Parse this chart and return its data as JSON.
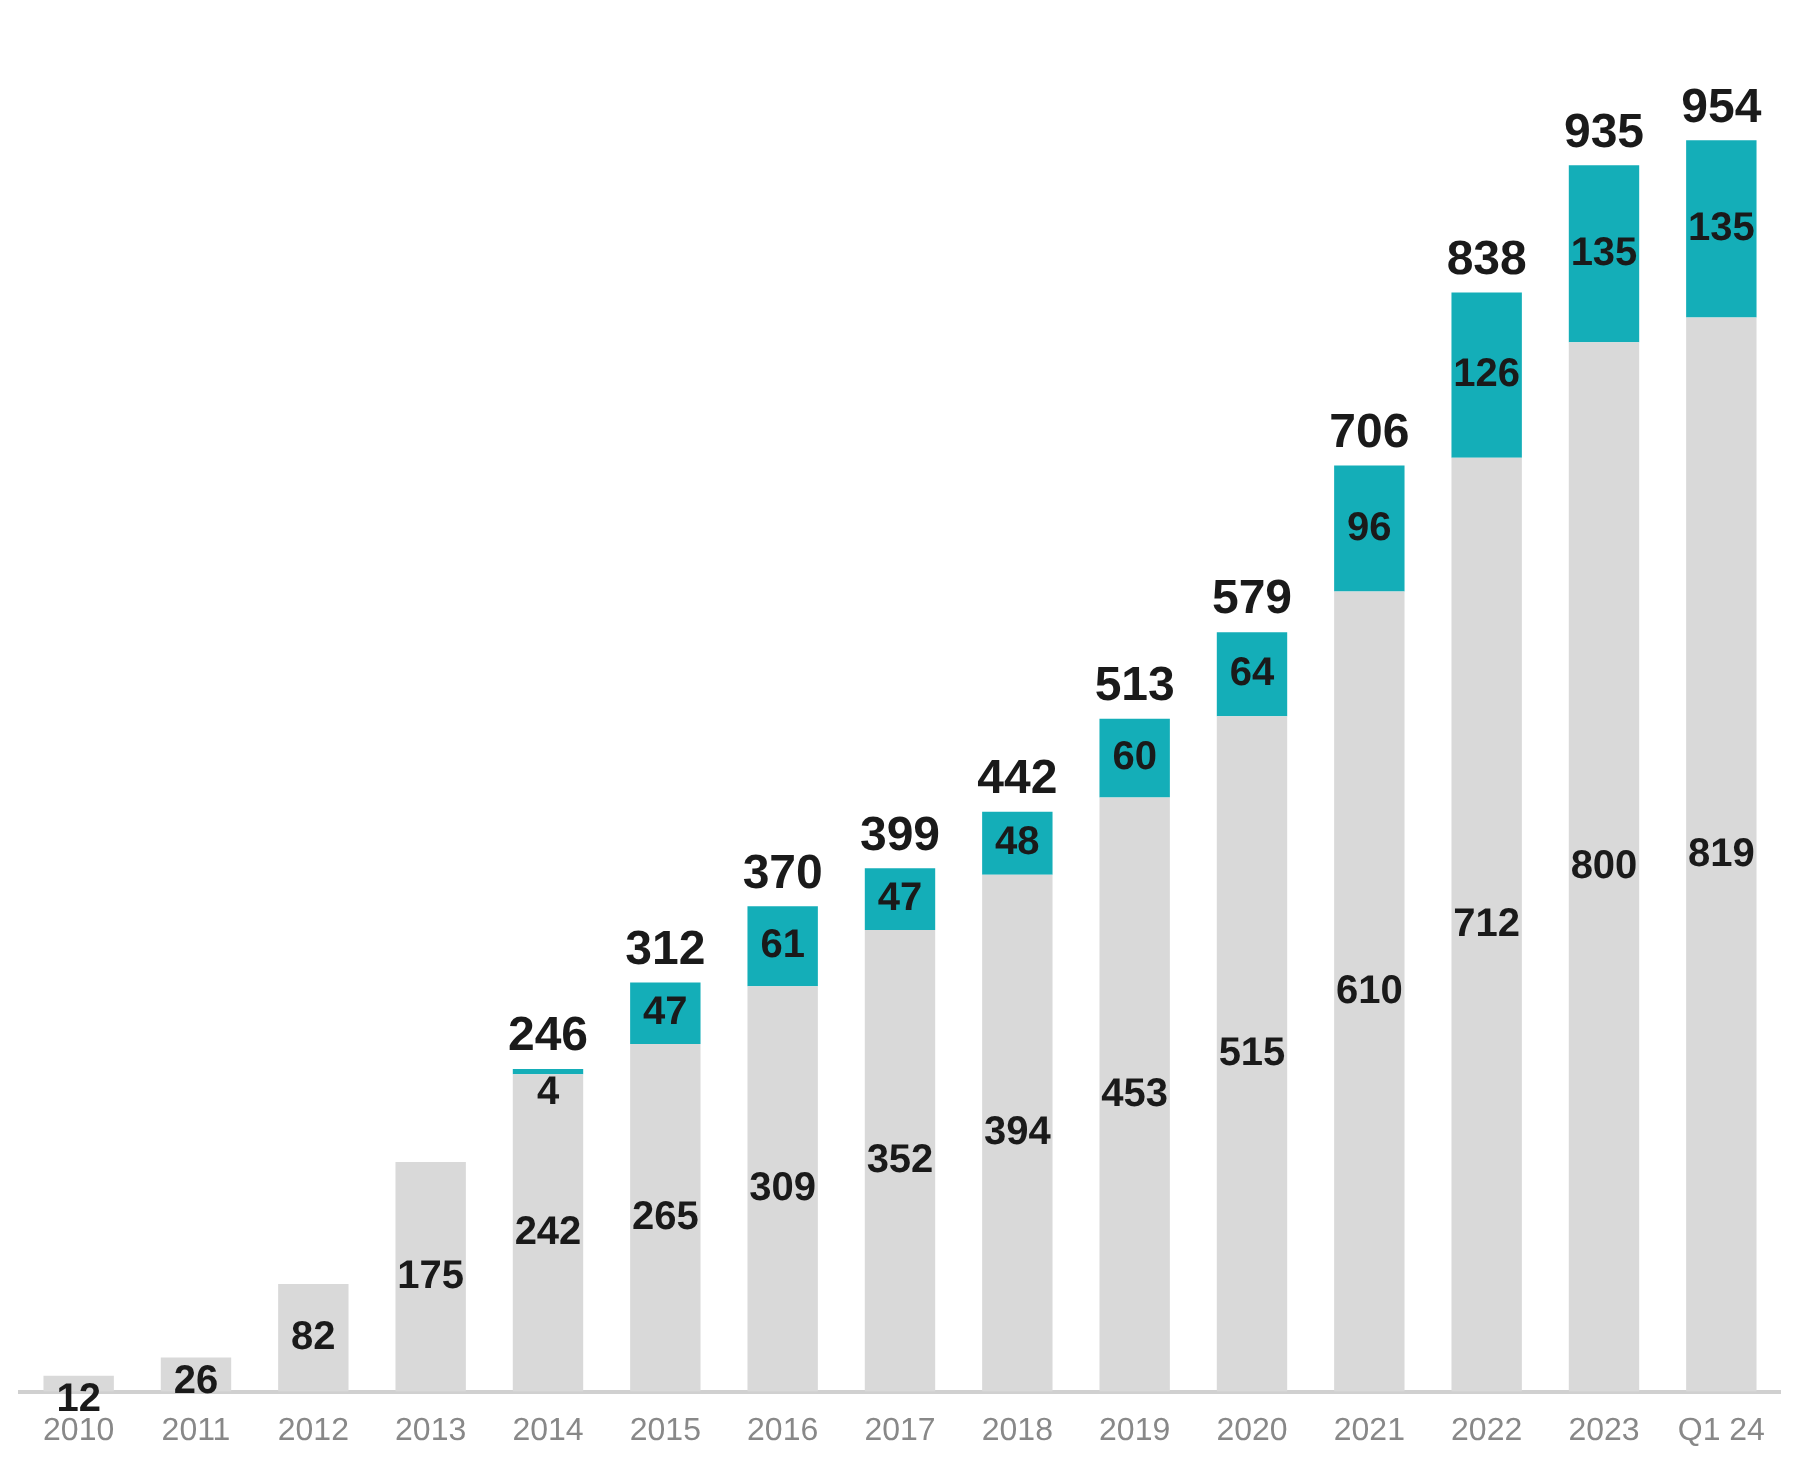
{
  "chart_data": {
    "type": "bar",
    "stacked": true,
    "categories": [
      "2010",
      "2011",
      "2012",
      "2013",
      "2014",
      "2015",
      "2016",
      "2017",
      "2018",
      "2019",
      "2020",
      "2021",
      "2022",
      "2023",
      "Q1 24"
    ],
    "series": [
      {
        "color": "#d9d9d9",
        "values": [
          12,
          26,
          82,
          175,
          242,
          265,
          309,
          352,
          394,
          453,
          515,
          610,
          712,
          800,
          819
        ]
      },
      {
        "color": "#14aeb8",
        "values": [
          null,
          null,
          null,
          null,
          4,
          47,
          61,
          47,
          48,
          60,
          64,
          96,
          126,
          135,
          135
        ]
      }
    ],
    "data_labels": true,
    "totals": [
      null,
      null,
      null,
      null,
      "246",
      "312",
      "370",
      "399",
      "442",
      "513",
      "579",
      "706",
      "838",
      "935",
      "954"
    ],
    "grid": false,
    "legend": false,
    "tick_labels": "x"
  }
}
